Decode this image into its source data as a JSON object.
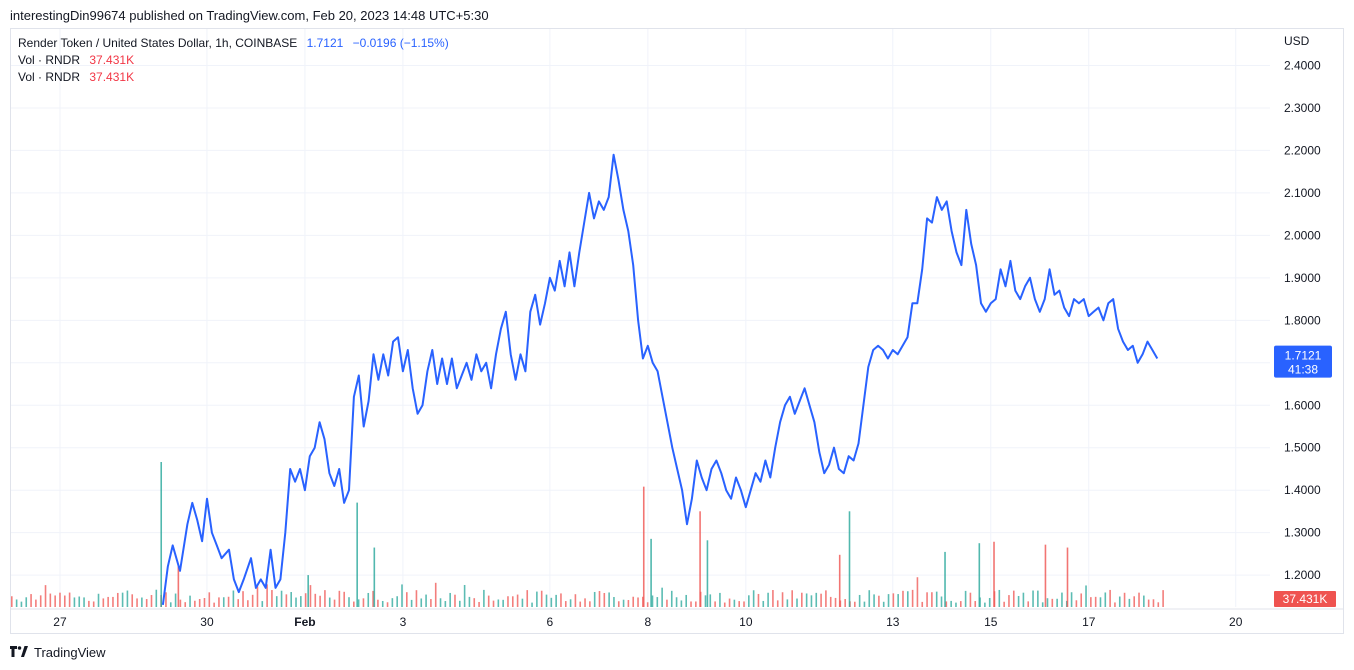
{
  "header": {
    "published_line": "interestingDin99674 published on TradingView.com, Feb 20, 2023 14:48 UTC+5:30"
  },
  "legend": {
    "symbol": "Render Token / United States Dollar, 1h, COINBASE",
    "price": "1.7121",
    "change": "−0.0196 (−1.15%)",
    "vol1_label": "Vol · RNDR",
    "vol1_value": "37.431K",
    "vol2_label": "Vol · RNDR",
    "vol2_value": "37.431K"
  },
  "footer": {
    "brand": "TradingView"
  },
  "colors": {
    "line": "#2962ff",
    "vol_up": "#26a69a",
    "vol_down": "#ef5350",
    "grid": "#f0f3fa"
  },
  "chart_data": {
    "type": "line",
    "ylabel": "USD",
    "ylim": [
      1.125,
      2.46
    ],
    "y_ticks": [
      "2.4000",
      "2.3000",
      "2.2000",
      "2.1000",
      "2.0000",
      "1.9000",
      "1.8000",
      "1.7000",
      "1.6000",
      "1.5000",
      "1.4000",
      "1.3000",
      "1.2000"
    ],
    "x_ticks": [
      {
        "label": "27",
        "x": 0
      },
      {
        "label": "30",
        "x": 3.0
      },
      {
        "label": "Feb",
        "x": 5.0
      },
      {
        "label": "3",
        "x": 7.0
      },
      {
        "label": "6",
        "x": 10.0
      },
      {
        "label": "8",
        "x": 12.0
      },
      {
        "label": "10",
        "x": 14.0
      },
      {
        "label": "13",
        "x": 17.0
      },
      {
        "label": "15",
        "x": 19.0
      },
      {
        "label": "17",
        "x": 21.0
      },
      {
        "label": "20",
        "x": 24.0
      }
    ],
    "xlim": [
      -1.0,
      24.7
    ],
    "series": [
      {
        "points": [
          [
            2.1,
            1.13
          ],
          [
            2.2,
            1.22
          ],
          [
            2.3,
            1.27
          ],
          [
            2.45,
            1.21
          ],
          [
            2.6,
            1.32
          ],
          [
            2.7,
            1.37
          ],
          [
            2.8,
            1.33
          ],
          [
            2.9,
            1.28
          ],
          [
            3.0,
            1.38
          ],
          [
            3.1,
            1.3
          ],
          [
            3.2,
            1.27
          ],
          [
            3.3,
            1.24
          ],
          [
            3.45,
            1.26
          ],
          [
            3.55,
            1.19
          ],
          [
            3.65,
            1.16
          ],
          [
            3.75,
            1.19
          ],
          [
            3.9,
            1.24
          ],
          [
            4.0,
            1.17
          ],
          [
            4.1,
            1.19
          ],
          [
            4.2,
            1.17
          ],
          [
            4.3,
            1.26
          ],
          [
            4.4,
            1.17
          ],
          [
            4.5,
            1.19
          ],
          [
            4.6,
            1.3
          ],
          [
            4.7,
            1.45
          ],
          [
            4.8,
            1.42
          ],
          [
            4.9,
            1.45
          ],
          [
            5.0,
            1.4
          ],
          [
            5.1,
            1.48
          ],
          [
            5.2,
            1.5
          ],
          [
            5.3,
            1.56
          ],
          [
            5.4,
            1.52
          ],
          [
            5.5,
            1.44
          ],
          [
            5.6,
            1.41
          ],
          [
            5.7,
            1.45
          ],
          [
            5.8,
            1.37
          ],
          [
            5.9,
            1.4
          ],
          [
            6.0,
            1.62
          ],
          [
            6.1,
            1.67
          ],
          [
            6.2,
            1.55
          ],
          [
            6.3,
            1.61
          ],
          [
            6.4,
            1.72
          ],
          [
            6.5,
            1.66
          ],
          [
            6.6,
            1.72
          ],
          [
            6.7,
            1.67
          ],
          [
            6.8,
            1.75
          ],
          [
            6.9,
            1.76
          ],
          [
            7.0,
            1.68
          ],
          [
            7.1,
            1.73
          ],
          [
            7.2,
            1.64
          ],
          [
            7.3,
            1.58
          ],
          [
            7.4,
            1.6
          ],
          [
            7.5,
            1.68
          ],
          [
            7.6,
            1.73
          ],
          [
            7.7,
            1.65
          ],
          [
            7.8,
            1.71
          ],
          [
            7.9,
            1.65
          ],
          [
            8.0,
            1.71
          ],
          [
            8.1,
            1.64
          ],
          [
            8.2,
            1.67
          ],
          [
            8.3,
            1.7
          ],
          [
            8.4,
            1.66
          ],
          [
            8.5,
            1.72
          ],
          [
            8.6,
            1.68
          ],
          [
            8.7,
            1.7
          ],
          [
            8.8,
            1.64
          ],
          [
            8.9,
            1.72
          ],
          [
            9.0,
            1.78
          ],
          [
            9.1,
            1.82
          ],
          [
            9.2,
            1.72
          ],
          [
            9.3,
            1.66
          ],
          [
            9.4,
            1.72
          ],
          [
            9.5,
            1.68
          ],
          [
            9.6,
            1.82
          ],
          [
            9.7,
            1.86
          ],
          [
            9.8,
            1.79
          ],
          [
            9.9,
            1.84
          ],
          [
            10.0,
            1.9
          ],
          [
            10.1,
            1.87
          ],
          [
            10.2,
            1.94
          ],
          [
            10.3,
            1.88
          ],
          [
            10.4,
            1.96
          ],
          [
            10.5,
            1.88
          ],
          [
            10.6,
            1.96
          ],
          [
            10.7,
            2.03
          ],
          [
            10.8,
            2.1
          ],
          [
            10.9,
            2.04
          ],
          [
            11.0,
            2.08
          ],
          [
            11.1,
            2.06
          ],
          [
            11.2,
            2.09
          ],
          [
            11.3,
            2.19
          ],
          [
            11.4,
            2.13
          ],
          [
            11.5,
            2.06
          ],
          [
            11.6,
            2.01
          ],
          [
            11.7,
            1.93
          ],
          [
            11.8,
            1.8
          ],
          [
            11.9,
            1.71
          ],
          [
            12.0,
            1.74
          ],
          [
            12.1,
            1.7
          ],
          [
            12.2,
            1.68
          ],
          [
            12.3,
            1.62
          ],
          [
            12.4,
            1.56
          ],
          [
            12.5,
            1.5
          ],
          [
            12.6,
            1.45
          ],
          [
            12.7,
            1.4
          ],
          [
            12.8,
            1.32
          ],
          [
            12.9,
            1.38
          ],
          [
            13.0,
            1.47
          ],
          [
            13.1,
            1.43
          ],
          [
            13.2,
            1.4
          ],
          [
            13.3,
            1.45
          ],
          [
            13.4,
            1.47
          ],
          [
            13.5,
            1.44
          ],
          [
            13.6,
            1.4
          ],
          [
            13.7,
            1.38
          ],
          [
            13.8,
            1.43
          ],
          [
            13.9,
            1.4
          ],
          [
            14.0,
            1.36
          ],
          [
            14.1,
            1.4
          ],
          [
            14.2,
            1.44
          ],
          [
            14.3,
            1.42
          ],
          [
            14.4,
            1.47
          ],
          [
            14.5,
            1.43
          ],
          [
            14.6,
            1.5
          ],
          [
            14.7,
            1.56
          ],
          [
            14.8,
            1.6
          ],
          [
            14.9,
            1.62
          ],
          [
            15.0,
            1.58
          ],
          [
            15.1,
            1.61
          ],
          [
            15.2,
            1.64
          ],
          [
            15.3,
            1.6
          ],
          [
            15.4,
            1.56
          ],
          [
            15.5,
            1.49
          ],
          [
            15.6,
            1.44
          ],
          [
            15.7,
            1.46
          ],
          [
            15.8,
            1.5
          ],
          [
            15.9,
            1.45
          ],
          [
            16.0,
            1.44
          ],
          [
            16.1,
            1.48
          ],
          [
            16.2,
            1.47
          ],
          [
            16.3,
            1.51
          ],
          [
            16.4,
            1.6
          ],
          [
            16.5,
            1.69
          ],
          [
            16.6,
            1.73
          ],
          [
            16.7,
            1.74
          ],
          [
            16.8,
            1.73
          ],
          [
            16.9,
            1.71
          ],
          [
            17.0,
            1.73
          ],
          [
            17.1,
            1.72
          ],
          [
            17.2,
            1.74
          ],
          [
            17.3,
            1.76
          ],
          [
            17.4,
            1.84
          ],
          [
            17.5,
            1.84
          ],
          [
            17.6,
            1.92
          ],
          [
            17.7,
            2.04
          ],
          [
            17.8,
            2.03
          ],
          [
            17.9,
            2.09
          ],
          [
            18.0,
            2.06
          ],
          [
            18.1,
            2.08
          ],
          [
            18.2,
            2.01
          ],
          [
            18.3,
            1.96
          ],
          [
            18.4,
            1.93
          ],
          [
            18.5,
            2.06
          ],
          [
            18.6,
            1.98
          ],
          [
            18.7,
            1.93
          ],
          [
            18.8,
            1.84
          ],
          [
            18.9,
            1.82
          ],
          [
            19.0,
            1.84
          ],
          [
            19.1,
            1.85
          ],
          [
            19.2,
            1.92
          ],
          [
            19.3,
            1.88
          ],
          [
            19.4,
            1.94
          ],
          [
            19.5,
            1.87
          ],
          [
            19.6,
            1.85
          ],
          [
            19.7,
            1.88
          ],
          [
            19.8,
            1.9
          ],
          [
            19.9,
            1.85
          ],
          [
            20.0,
            1.82
          ],
          [
            20.1,
            1.85
          ],
          [
            20.2,
            1.92
          ],
          [
            20.3,
            1.86
          ],
          [
            20.4,
            1.87
          ],
          [
            20.5,
            1.83
          ],
          [
            20.6,
            1.81
          ],
          [
            20.7,
            1.85
          ],
          [
            20.8,
            1.84
          ],
          [
            20.9,
            1.85
          ],
          [
            21.0,
            1.81
          ],
          [
            21.1,
            1.82
          ],
          [
            21.2,
            1.83
          ],
          [
            21.3,
            1.8
          ],
          [
            21.4,
            1.84
          ],
          [
            21.5,
            1.85
          ],
          [
            21.6,
            1.78
          ],
          [
            21.7,
            1.75
          ],
          [
            21.8,
            1.73
          ],
          [
            21.9,
            1.74
          ],
          [
            22.0,
            1.7
          ],
          [
            22.1,
            1.72
          ],
          [
            22.2,
            1.75
          ],
          [
            22.3,
            1.73
          ],
          [
            22.4,
            1.71
          ]
        ]
      }
    ],
    "volume": {
      "x_start": -1.0,
      "x_end": 22.6,
      "count": 240,
      "max": 1.0,
      "spikes": [
        {
          "x": 2.05,
          "v": 1.0,
          "up": true
        },
        {
          "x": 2.4,
          "v": 0.28,
          "up": false
        },
        {
          "x": 6.05,
          "v": 0.72,
          "up": true
        },
        {
          "x": 6.4,
          "v": 0.41,
          "up": true
        },
        {
          "x": 5.05,
          "v": 0.22,
          "up": true
        },
        {
          "x": 11.9,
          "v": 0.83,
          "up": false
        },
        {
          "x": 12.05,
          "v": 0.47,
          "up": true
        },
        {
          "x": 13.05,
          "v": 0.66,
          "up": false
        },
        {
          "x": 13.2,
          "v": 0.46,
          "up": true
        },
        {
          "x": 16.1,
          "v": 0.66,
          "up": true
        },
        {
          "x": 15.9,
          "v": 0.36,
          "up": false
        },
        {
          "x": 18.75,
          "v": 0.44,
          "up": true
        },
        {
          "x": 19.05,
          "v": 0.45,
          "up": false
        },
        {
          "x": 20.1,
          "v": 0.43,
          "up": false
        },
        {
          "x": 20.55,
          "v": 0.41,
          "up": false
        },
        {
          "x": 18.05,
          "v": 0.38,
          "up": true
        }
      ]
    },
    "current_price_label": {
      "price": "1.7121",
      "countdown": "41:38"
    },
    "volume_label": "37.431K"
  }
}
